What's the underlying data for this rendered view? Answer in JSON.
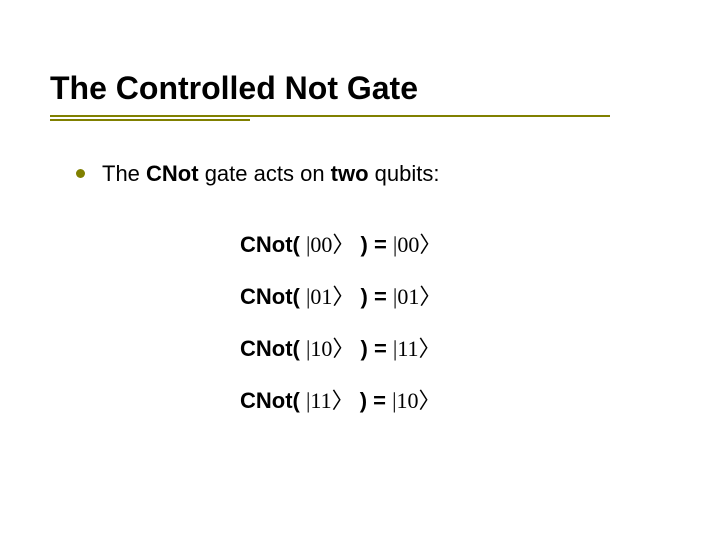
{
  "slide": {
    "title": "The Controlled Not Gate",
    "accent_color": "#808000",
    "background_color": "#ffffff",
    "title_fontsize": 32,
    "body_fontsize": 22,
    "bullet": {
      "pre": "The ",
      "bold1": "CNot",
      "mid": " gate acts on ",
      "bold2": "two",
      "post": " qubits:"
    },
    "equations": [
      {
        "op": "CNot( ",
        "in_bar": "|",
        "in_val": "00",
        "mid": " ) = ",
        "out_bar": "|",
        "out_val": "00"
      },
      {
        "op": "CNot( ",
        "in_bar": "|",
        "in_val": "01",
        "mid": " ) = ",
        "out_bar": "|",
        "out_val": "01"
      },
      {
        "op": "CNot( ",
        "in_bar": "|",
        "in_val": "10",
        "mid": " ) = ",
        "out_bar": "|",
        "out_val": "11"
      },
      {
        "op": "CNot( ",
        "in_bar": "|",
        "in_val": "11",
        "mid": " ) = ",
        "out_bar": "|",
        "out_val": "10"
      }
    ],
    "rangle_char": "〉"
  }
}
